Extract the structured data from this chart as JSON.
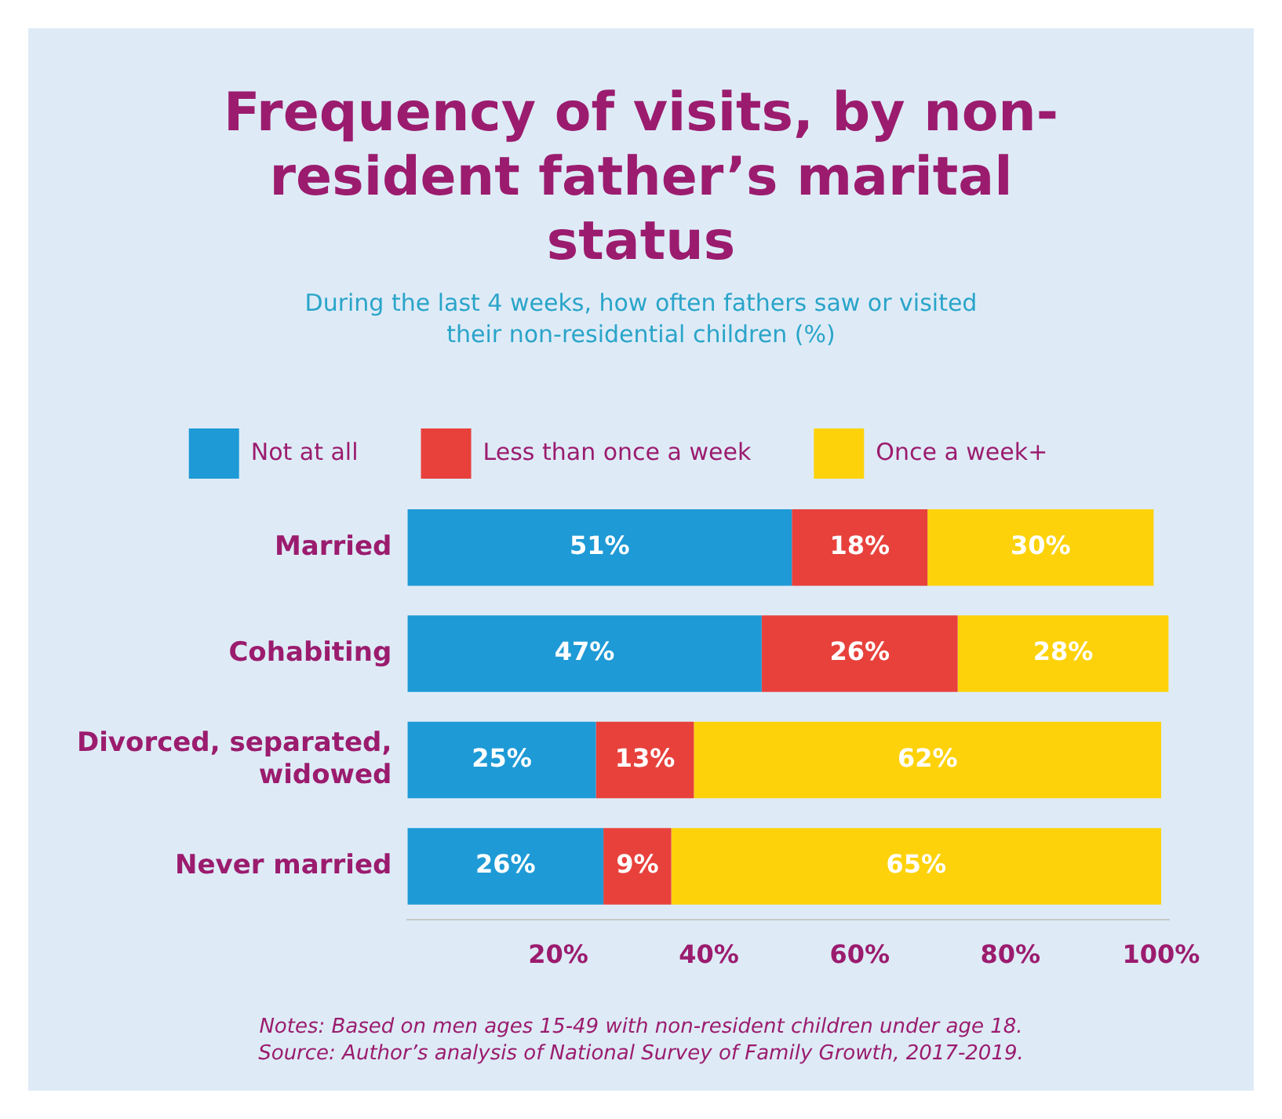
{
  "chart_data": {
    "type": "bar",
    "orientation": "horizontal",
    "stacked": true,
    "title": "Frequency of visits, by non-resident father’s marital status",
    "subtitle": "During the last 4 weeks, how often fathers saw or visited their non-residential children (%)",
    "categories": [
      "Married",
      "Cohabiting",
      "Divorced, separated, widowed",
      "Never married"
    ],
    "series": [
      {
        "name": "Not at all",
        "color": "#1e9ad6",
        "values": [
          51,
          47,
          25,
          26
        ],
        "value_labels": [
          "51%",
          "47%",
          "25%",
          "26%"
        ]
      },
      {
        "name": "Less than once a week",
        "color": "#e8413c",
        "values": [
          18,
          26,
          13,
          9
        ],
        "value_labels": [
          "18%",
          "26%",
          "13%",
          "9%"
        ]
      },
      {
        "name": "Once a week+",
        "color": "#fdd20a",
        "values": [
          30,
          28,
          62,
          65
        ],
        "value_labels": [
          "30%",
          "28%",
          "62%",
          "65%"
        ]
      }
    ],
    "xlim": [
      0,
      101
    ],
    "xticks": [
      {
        "value": 20,
        "label": "20%"
      },
      {
        "value": 40,
        "label": "40%"
      },
      {
        "value": 60,
        "label": "60%"
      },
      {
        "value": 80,
        "label": "80%"
      },
      {
        "value": 100,
        "label": "100%"
      }
    ],
    "grid": false,
    "legend": "top",
    "annotations": [
      "Notes: Based on men ages 15-49 with non-resident children under age 18.",
      "Source: Author’s analysis of National Survey of Family Growth, 2017-2019."
    ]
  }
}
